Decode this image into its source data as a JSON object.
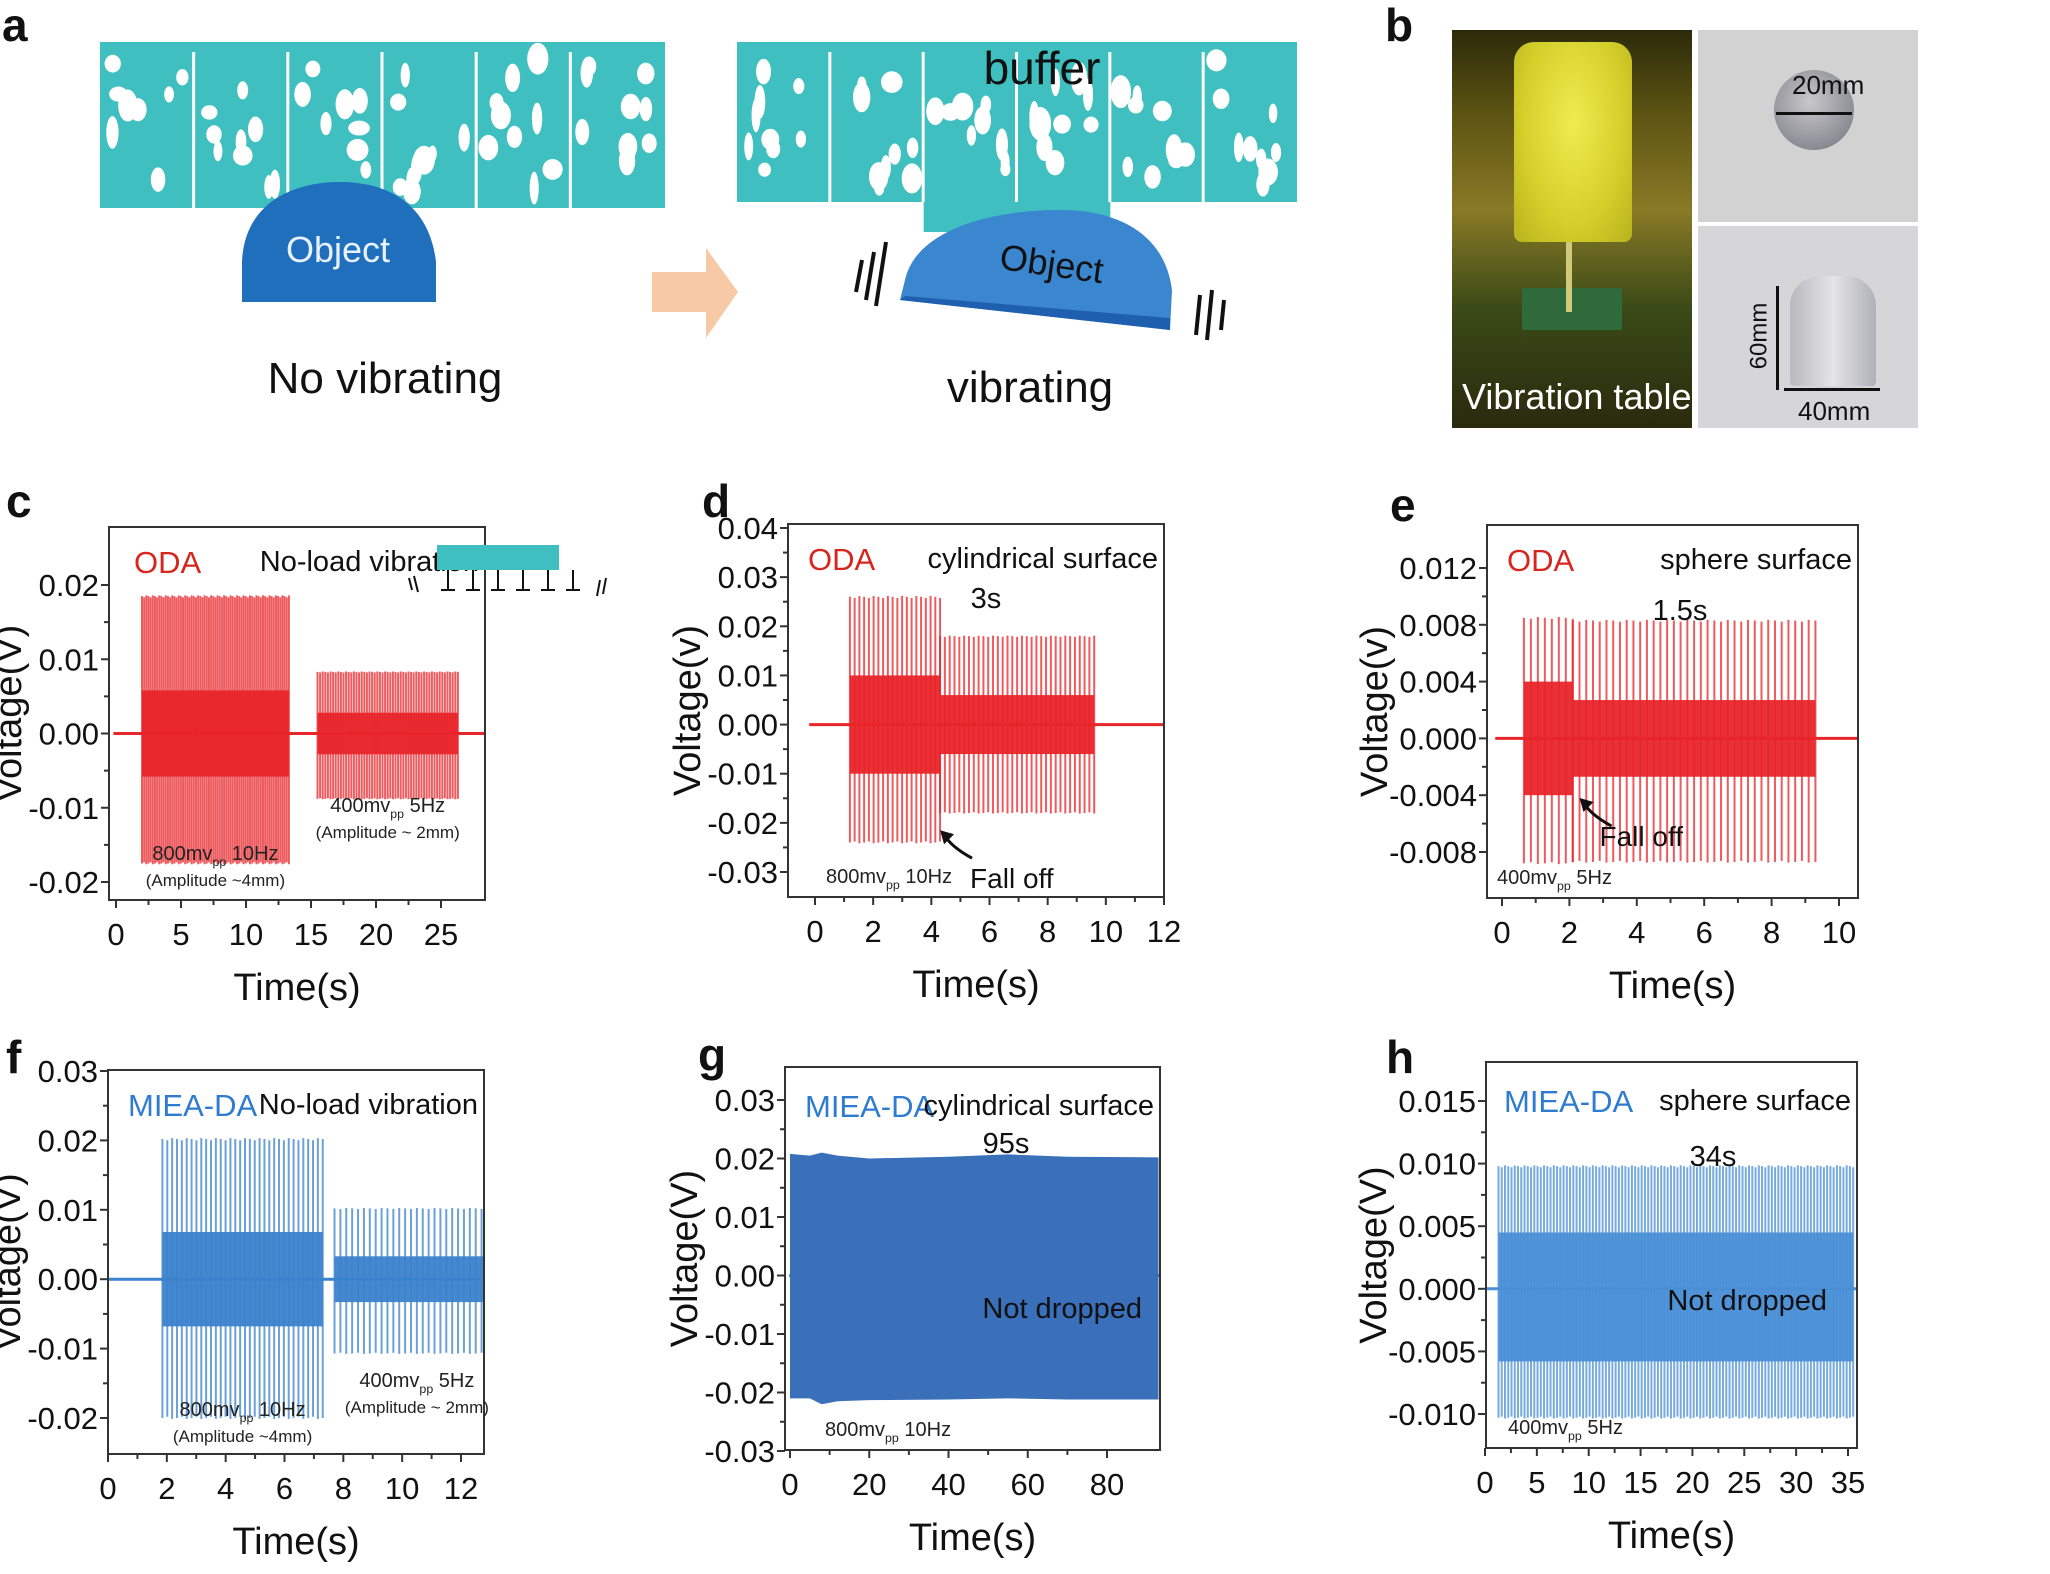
{
  "figure": {
    "panel_labels": [
      "a",
      "b",
      "c",
      "d",
      "e",
      "f",
      "g",
      "h"
    ],
    "a": {
      "state1_label": "No vibrating",
      "state2_label": "vibrating",
      "object_label": "Object",
      "buffer_label": "buffer",
      "colors": {
        "buffer": "#3fbfc0",
        "object": "#1f6fbd",
        "object_vib": "#3a86cf",
        "arrow": "#f7c9a4"
      }
    },
    "b": {
      "photo1_caption": "Vibration table",
      "photo2_dim": "20mm",
      "photo3_dim_h": "60mm",
      "photo3_dim_w": "40mm"
    }
  },
  "chart_data": [
    {
      "id": "c",
      "type": "line",
      "material": "ODA",
      "material_color": "#d7261e",
      "condition": "No-load vibration",
      "xlabel": "Time(s)",
      "ylabel": "Voltage(V)",
      "xlim": [
        -1,
        29
      ],
      "ylim": [
        -0.025,
        0.0285
      ],
      "xticks": [
        0,
        5,
        10,
        15,
        20,
        25
      ],
      "xtick_labels": [
        "0",
        "5",
        "10",
        "15",
        "20",
        "25"
      ],
      "yticks": [
        -0.02,
        -0.01,
        0,
        0.01,
        0.02
      ],
      "ytick_labels": [
        "-0.02",
        "-0.01",
        "0.00",
        "0.01",
        "0.02"
      ],
      "series_color": "#e8252a",
      "segments": [
        {
          "start": 2.0,
          "end": 13.3,
          "peak_pos": 0.0185,
          "peak_neg": -0.0175,
          "core": 0.0058,
          "freq_hz": 10,
          "label": "800mv",
          "label_sub": "pp",
          "label_tail": " 10Hz",
          "note": "(Amplitude ~4mm)"
        },
        {
          "start": 15.5,
          "end": 26.3,
          "peak_pos": 0.0083,
          "peak_neg": -0.0088,
          "core": 0.0028,
          "freq_hz": 5,
          "label": "400mv",
          "label_sub": "pp",
          "label_tail": " 5Hz",
          "note": "(Amplitude ~ 2mm)"
        }
      ]
    },
    {
      "id": "d",
      "type": "line",
      "material": "ODA",
      "material_color": "#d7261e",
      "condition": "cylindrical surface",
      "xlabel": "Time(s)",
      "ylabel": "Voltage(v)",
      "xlim": [
        -1,
        12
      ],
      "ylim": [
        -0.035,
        0.04
      ],
      "xticks": [
        0,
        2,
        4,
        6,
        8,
        10,
        12
      ],
      "xtick_labels": [
        "0",
        "2",
        "4",
        "6",
        "8",
        "10",
        "12"
      ],
      "yticks": [
        -0.03,
        -0.02,
        -0.01,
        0,
        0.01,
        0.02,
        0.03,
        0.04
      ],
      "ytick_labels": [
        "-0.03",
        "-0.02",
        "-0.01",
        "0.00",
        "0.01",
        "0.02",
        "0.03",
        "0.04"
      ],
      "series_color": "#e8252a",
      "segments": [
        {
          "start": 1.2,
          "end": 4.3,
          "peak_pos": 0.026,
          "peak_neg": -0.024,
          "core": 0.01,
          "freq_hz": 10
        },
        {
          "start": 4.3,
          "end": 9.6,
          "peak_pos": 0.018,
          "peak_neg": -0.018,
          "core": 0.006,
          "freq_hz": 10
        }
      ],
      "annotations": {
        "duration": "3s",
        "fall_off": "Fall off",
        "drive": "800mv",
        "drive_sub": "pp",
        "drive_tail": " 10Hz"
      },
      "fall_off_time": 4.3
    },
    {
      "id": "e",
      "type": "line",
      "material": "ODA",
      "material_color": "#d7261e",
      "condition": "sphere surface",
      "xlabel": "Time(s)",
      "ylabel": "Voltage(v)",
      "xlim": [
        -0.5,
        10.5
      ],
      "ylim": [
        -0.011,
        0.015
      ],
      "xticks": [
        0,
        2,
        4,
        6,
        8,
        10
      ],
      "xtick_labels": [
        "0",
        "2",
        "4",
        "6",
        "8",
        "10"
      ],
      "yticks": [
        -0.008,
        -0.004,
        0,
        0.004,
        0.008,
        0.012
      ],
      "ytick_labels": [
        "-0.008",
        "-0.004",
        "0.000",
        "0.004",
        "0.008",
        "0.012"
      ],
      "series_color": "#e8252a",
      "segments": [
        {
          "start": 0.65,
          "end": 2.1,
          "peak_pos": 0.0085,
          "peak_neg": -0.0088,
          "core": 0.004,
          "freq_hz": 5
        },
        {
          "start": 2.1,
          "end": 9.3,
          "peak_pos": 0.0083,
          "peak_neg": -0.0087,
          "core": 0.0027,
          "freq_hz": 5
        }
      ],
      "annotations": {
        "duration": "1.5s",
        "fall_off": "Fall off",
        "drive": "400mv",
        "drive_sub": "pp",
        "drive_tail": " 5Hz"
      },
      "fall_off_time": 2.3
    },
    {
      "id": "f",
      "type": "line",
      "material": "MIEA-DA",
      "material_color": "#2f7bd0",
      "condition": "No-load vibration",
      "xlabel": "Time(s)",
      "ylabel": "Voltage(V)",
      "xlim": [
        0,
        14
      ],
      "ylim": [
        -0.025,
        0.03
      ],
      "xticks": [
        0,
        2,
        4,
        6,
        8,
        10,
        12
      ],
      "xtick_labels": [
        "0",
        "2",
        "4",
        "6",
        "8",
        "10",
        "12"
      ],
      "yticks": [
        -0.02,
        -0.01,
        0,
        0.01,
        0.02,
        0.03
      ],
      "ytick_labels": [
        "-0.02",
        "-0.01",
        "0.00",
        "0.01",
        "0.02",
        "0.03"
      ],
      "series_color": "#3b82cc",
      "segments": [
        {
          "start": 1.85,
          "end": 7.3,
          "peak_pos": 0.0202,
          "peak_neg": -0.02,
          "core": 0.0068,
          "freq_hz": 10,
          "label": "800mv",
          "label_sub": "pp",
          "label_tail": " 10Hz",
          "note": "(Amplitude ~4mm)"
        },
        {
          "start": 7.7,
          "end": 13.3,
          "peak_pos": 0.0102,
          "peak_neg": -0.0107,
          "core": 0.0033,
          "freq_hz": 5,
          "label": "400mv",
          "label_sub": "pp",
          "label_tail": " 5Hz",
          "note": "(Amplitude ~ 2mm)"
        }
      ]
    },
    {
      "id": "g",
      "type": "area",
      "material": "MIEA-DA",
      "material_color": "#2f7bd0",
      "condition": "cylindrical surface",
      "xlabel": "Time(s)",
      "ylabel": "Voltage(V)",
      "xlim": [
        -0.5,
        94
      ],
      "ylim": [
        -0.03,
        0.035
      ],
      "xticks": [
        0,
        20,
        40,
        60,
        80
      ],
      "xtick_labels": [
        "0",
        "20",
        "40",
        "60",
        "80"
      ],
      "yticks": [
        -0.03,
        -0.02,
        -0.01,
        0,
        0.01,
        0.02,
        0.03
      ],
      "ytick_labels": [
        "-0.03",
        "-0.02",
        "-0.01",
        "0.00",
        "0.01",
        "0.02",
        "0.03"
      ],
      "series_color": "#3a6fba",
      "envelope": {
        "t": [
          0,
          5,
          8,
          12,
          20,
          40,
          55,
          70,
          93
        ],
        "upper": [
          0.0208,
          0.0205,
          0.021,
          0.0205,
          0.02,
          0.0203,
          0.0207,
          0.0203,
          0.0202
        ],
        "lower": [
          -0.021,
          -0.021,
          -0.022,
          -0.0215,
          -0.0213,
          -0.0212,
          -0.021,
          -0.0212,
          -0.0212
        ]
      },
      "annotations": {
        "duration": "95s",
        "status": "Not dropped",
        "drive": "800mv",
        "drive_sub": "pp",
        "drive_tail": " 10Hz"
      }
    },
    {
      "id": "h",
      "type": "line",
      "material": "MIEA-DA",
      "material_color": "#2f7bd0",
      "condition": "sphere surface",
      "xlabel": "Time(s)",
      "ylabel": "Voltage(V)",
      "xlim": [
        0,
        35.5
      ],
      "ylim": [
        -0.0125,
        0.018
      ],
      "xticks": [
        0,
        5,
        10,
        15,
        20,
        25,
        30,
        35
      ],
      "xtick_labels": [
        "0",
        "5",
        "10",
        "15",
        "20",
        "25",
        "30",
        "35"
      ],
      "yticks": [
        -0.01,
        -0.005,
        0,
        0.005,
        0.01,
        0.015
      ],
      "ytick_labels": [
        "-0.010",
        "-0.005",
        "0.000",
        "0.005",
        "0.010",
        "0.015"
      ],
      "series_color": "#4a8fd6",
      "segments": [
        {
          "start": 1.3,
          "end": 35.5,
          "peak_pos": 0.0098,
          "peak_neg": -0.0103,
          "core": 0.0045,
          "core_neg": -0.0058,
          "freq_hz": 5
        }
      ],
      "annotations": {
        "duration": "34s",
        "status": "Not dropped",
        "drive": "400mv",
        "drive_sub": "pp",
        "drive_tail": " 5Hz"
      }
    }
  ]
}
